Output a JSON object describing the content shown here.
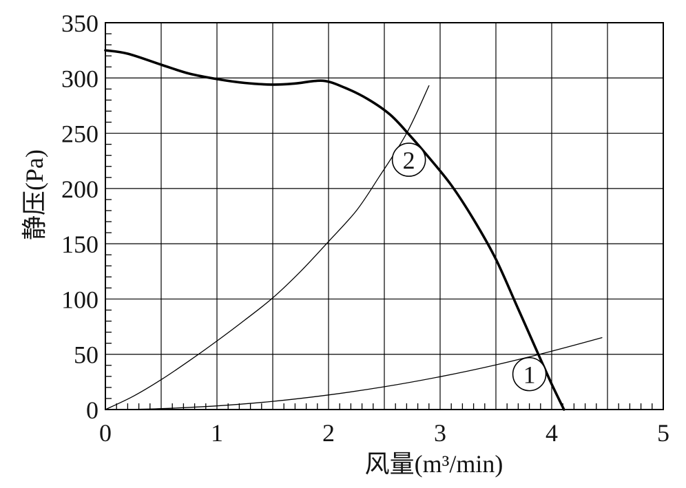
{
  "chart_data": {
    "type": "line",
    "title": "",
    "xlabel": "风量(m³/min)",
    "ylabel": "静压(Pa)",
    "xlim": [
      0,
      5
    ],
    "ylim": [
      0,
      350
    ],
    "grid": true,
    "legend": "none",
    "grid_x_step": 0.5,
    "grid_y_step": 50,
    "minor_tick_x_step": 0.1,
    "minor_tick_y_step": 10,
    "x_tick_values": [
      0,
      1,
      2,
      3,
      4,
      5
    ],
    "x_tick_labels": [
      "0",
      "1",
      "2",
      "3",
      "4",
      "5"
    ],
    "y_tick_values": [
      0,
      50,
      100,
      150,
      200,
      250,
      300,
      350
    ],
    "y_tick_labels": [
      "0",
      "50",
      "100",
      "150",
      "200",
      "250",
      "300",
      "350"
    ],
    "colors": {
      "line": "#000000",
      "text": "#141414",
      "background": "#ffffff"
    },
    "series": [
      {
        "name": "fan-static-pressure-curve",
        "line": "thick",
        "points": [
          [
            0,
            325
          ],
          [
            0.2,
            322
          ],
          [
            0.5,
            312
          ],
          [
            0.75,
            304
          ],
          [
            1.0,
            299
          ],
          [
            1.25,
            295.5
          ],
          [
            1.5,
            294
          ],
          [
            1.7,
            295
          ],
          [
            1.95,
            297.5
          ],
          [
            2.15,
            291
          ],
          [
            2.35,
            281
          ],
          [
            2.55,
            267
          ],
          [
            2.72,
            249
          ],
          [
            2.9,
            228
          ],
          [
            3.1,
            203
          ],
          [
            3.3,
            172
          ],
          [
            3.5,
            136
          ],
          [
            3.7,
            91
          ],
          [
            3.88,
            50
          ],
          [
            4.0,
            23
          ],
          [
            4.11,
            0
          ]
        ]
      },
      {
        "name": "system-resistance-curve-2",
        "label": "②",
        "line": "thin",
        "points": [
          [
            0,
            0
          ],
          [
            0.25,
            12
          ],
          [
            0.5,
            27
          ],
          [
            0.75,
            44
          ],
          [
            1.0,
            62
          ],
          [
            1.25,
            81
          ],
          [
            1.5,
            101
          ],
          [
            1.75,
            125
          ],
          [
            2.0,
            152
          ],
          [
            2.25,
            180
          ],
          [
            2.45,
            210
          ],
          [
            2.7,
            250
          ],
          [
            2.9,
            293
          ]
        ]
      },
      {
        "name": "system-resistance-curve-1",
        "label": "①",
        "line": "thin",
        "points": [
          [
            0.18,
            0
          ],
          [
            0.5,
            0.8
          ],
          [
            1.0,
            3.3
          ],
          [
            1.5,
            7.4
          ],
          [
            2.0,
            13.2
          ],
          [
            2.5,
            20.6
          ],
          [
            3.0,
            29.7
          ],
          [
            3.5,
            40.4
          ],
          [
            4.0,
            52.8
          ],
          [
            4.45,
            65
          ]
        ]
      }
    ],
    "annotations": [
      {
        "label": "2",
        "unicode": "②",
        "x": 2.72,
        "y": 226
      },
      {
        "label": "1",
        "unicode": "①",
        "x": 3.8,
        "y": 32
      }
    ]
  }
}
